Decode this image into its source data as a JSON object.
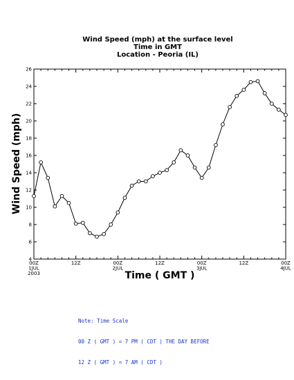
{
  "chart_data": {
    "type": "line",
    "title_lines": [
      "Wind Speed (mph) at the surface level",
      "Time in GMT",
      "Location - Peoria (IL)"
    ],
    "xlabel": "Time ( GMT )",
    "ylabel": "Wind Speed (mph)",
    "ylim": [
      4,
      26
    ],
    "yticks": [
      4,
      6,
      8,
      10,
      12,
      14,
      16,
      18,
      20,
      22,
      24,
      26
    ],
    "xlim_hours": [
      0,
      72
    ],
    "xticks": [
      {
        "hour": 0,
        "lines": [
          "00Z",
          "1JUL",
          "2003"
        ]
      },
      {
        "hour": 12,
        "lines": [
          "12Z"
        ]
      },
      {
        "hour": 24,
        "lines": [
          "00Z",
          "2JUL"
        ]
      },
      {
        "hour": 36,
        "lines": [
          "12Z"
        ]
      },
      {
        "hour": 48,
        "lines": [
          "00Z",
          "3JUL"
        ]
      },
      {
        "hour": 60,
        "lines": [
          "12Z"
        ]
      },
      {
        "hour": 72,
        "lines": [
          "00Z",
          "4JUL"
        ]
      }
    ],
    "grid": false,
    "series": [
      {
        "x_hours": [
          0,
          2,
          4,
          6,
          8,
          10,
          12,
          14,
          16,
          18,
          20,
          22,
          24,
          26,
          28,
          30,
          32,
          34,
          36,
          38,
          40,
          42,
          44,
          46,
          48,
          50,
          52,
          54,
          56,
          58,
          60,
          62,
          64,
          66,
          68,
          70,
          72
        ],
        "values": [
          11.3,
          15.2,
          13.4,
          10.1,
          11.3,
          10.5,
          8.1,
          8.2,
          7.0,
          6.6,
          6.9,
          8.0,
          9.4,
          11.1,
          12.5,
          13.0,
          13.0,
          13.6,
          14.0,
          14.3,
          15.2,
          16.6,
          16.0,
          14.6,
          13.4,
          14.6,
          17.2,
          19.6,
          21.6,
          22.9,
          23.6,
          24.5,
          24.6,
          23.2,
          22.0,
          21.3,
          20.7
        ]
      }
    ]
  },
  "note": {
    "lines": [
      "Note: Time Scale",
      "00 Z ( GMT ) = 7 PM ( CDT ) THE DAY BEFORE",
      "12 Z ( GMT ) = 7 AM ( CDT )"
    ]
  }
}
